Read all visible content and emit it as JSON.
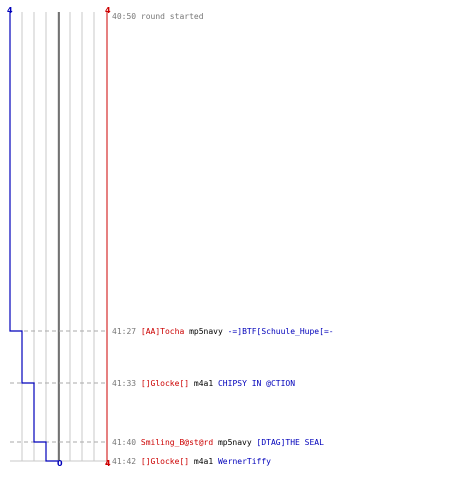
{
  "colors": {
    "left_team": "#0000bb",
    "right_team": "#cc0000",
    "neutral": "#555555",
    "grid": "#c8c8c8",
    "dashes": "#aaaaaa",
    "timestamp": "#777777",
    "weapon": "#000000"
  },
  "chart_data": {
    "type": "line",
    "title": "",
    "left_team_label": "4",
    "right_team_label": "4",
    "left_alive": [
      4,
      3,
      2,
      1,
      0
    ],
    "right_alive": [
      4,
      4,
      4,
      4,
      4
    ],
    "bottom_center_label": "0",
    "bottom_right_label": "4",
    "ylabel": "",
    "xlabel": "",
    "grid": true
  },
  "log": {
    "round_start": {
      "time": "40:50",
      "text": "round started"
    },
    "kills": [
      {
        "time": "41:27",
        "killer": "[AA]Tocha",
        "killer_team": "right",
        "weapon": "mp5navy",
        "victim": "-=]BTF[Schuule_Hupe[=-",
        "victim_team": "left"
      },
      {
        "time": "41:33",
        "killer": "[]Glocke[]",
        "killer_team": "right",
        "weapon": "m4a1",
        "victim": "CHIPSY IN @CTION",
        "victim_team": "left"
      },
      {
        "time": "41:40",
        "killer": "Smiling_B@st@rd",
        "killer_team": "right",
        "weapon": "mp5navy",
        "victim": "[DTAG]THE SEAL",
        "victim_team": "left"
      },
      {
        "time": "41:42",
        "killer": "[]Glocke[]",
        "killer_team": "right",
        "weapon": "m4a1",
        "victim": "WernerTiffy",
        "victim_team": "left"
      }
    ]
  }
}
